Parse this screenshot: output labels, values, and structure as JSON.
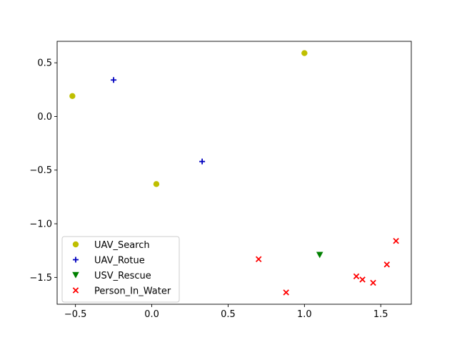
{
  "chart_data": {
    "type": "scatter",
    "title": "",
    "xlabel": "",
    "ylabel": "",
    "xlim": [
      -0.62,
      1.7
    ],
    "ylim": [
      -1.75,
      0.7
    ],
    "xticks": [
      {
        "value": -0.5,
        "label": "−0.5"
      },
      {
        "value": 0.0,
        "label": "0.0"
      },
      {
        "value": 0.5,
        "label": "0.5"
      },
      {
        "value": 1.0,
        "label": "1.0"
      },
      {
        "value": 1.5,
        "label": "1.5"
      }
    ],
    "yticks": [
      {
        "value": 0.5,
        "label": "0.5"
      },
      {
        "value": 0.0,
        "label": "0.0"
      },
      {
        "value": -0.5,
        "label": "−0.5"
      },
      {
        "value": -1.0,
        "label": "−1.0"
      },
      {
        "value": -1.5,
        "label": "−1.5"
      }
    ],
    "grid": false,
    "legend_position": "lower-left",
    "series": [
      {
        "name": "UAV_Search",
        "marker": "circle",
        "color": "#bfbf00",
        "points": [
          [
            -0.52,
            0.19
          ],
          [
            1.0,
            0.59
          ],
          [
            0.03,
            -0.63
          ]
        ]
      },
      {
        "name": "UAV_Rotue",
        "marker": "plus",
        "color": "#0000bf",
        "points": [
          [
            -0.25,
            0.34
          ],
          [
            0.33,
            -0.42
          ]
        ]
      },
      {
        "name": "USV_Rescue",
        "marker": "triangle-down",
        "color": "#008000",
        "points": [
          [
            1.1,
            -1.29
          ]
        ]
      },
      {
        "name": "Person_In_Water",
        "marker": "x",
        "color": "#ff0000",
        "points": [
          [
            0.7,
            -1.33
          ],
          [
            0.88,
            -1.64
          ],
          [
            1.34,
            -1.49
          ],
          [
            1.38,
            -1.52
          ],
          [
            1.45,
            -1.55
          ],
          [
            1.54,
            -1.38
          ],
          [
            1.6,
            -1.16
          ]
        ]
      }
    ]
  }
}
